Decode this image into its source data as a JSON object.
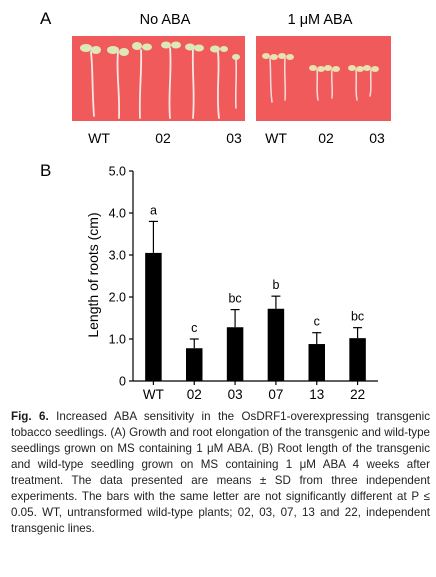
{
  "panel_a": {
    "letter": "A",
    "left_condition": "No ABA",
    "right_condition": "1 μM ABA",
    "plate_color": "#f05a5a",
    "left_plate_labels": [
      "WT",
      "02",
      "03"
    ],
    "right_plate_labels": [
      "WT",
      "02",
      "03"
    ]
  },
  "panel_b": {
    "letter": "B"
  },
  "chart_data": {
    "type": "bar",
    "ylabel": "Length of roots (cm)",
    "xlabel": "",
    "categories": [
      "WT",
      "02",
      "03",
      "07",
      "13",
      "22"
    ],
    "values": [
      3.05,
      0.78,
      1.28,
      1.72,
      0.88,
      1.02
    ],
    "errors": [
      0.75,
      0.22,
      0.42,
      0.3,
      0.27,
      0.25
    ],
    "significance_letters": [
      "a",
      "c",
      "bc",
      "b",
      "c",
      "bc"
    ],
    "ylim": [
      0,
      5.0
    ],
    "yticks": [
      "0",
      "1.0",
      "2.0",
      "3.0",
      "4.0",
      "5.0"
    ],
    "bar_color": "#000000",
    "grid": false
  },
  "caption": {
    "label": "Fig. 6.",
    "text": " Increased ABA sensitivity in the OsDRF1-overexpressing transgenic tobacco seedlings. (A) Growth and root elongation of the transgenic and wild-type seedlings grown on MS containing 1 μM ABA. (B) Root length of the transgenic and wild-type seedling grown on MS containing 1 μM ABA 4 weeks after treatment. The data presented are means ± SD from three independent experiments. The bars with the same letter are not significantly different at P ≤ 0.05. WT, untransformed wild-type plants; 02, 03, 07, 13 and 22, independent transgenic lines."
  }
}
